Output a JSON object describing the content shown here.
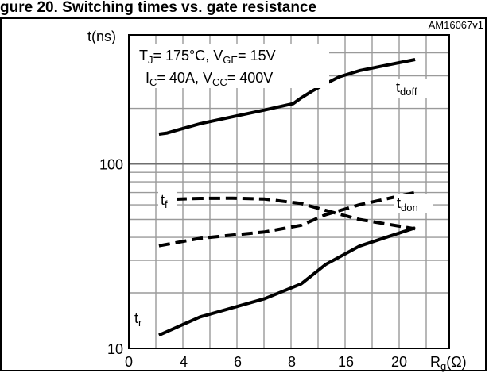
{
  "header": {
    "caption": "gure 20. Switching times vs. gate resistance"
  },
  "chart_data": {
    "type": "line",
    "code": "AM16067v1",
    "ylabel": "t(ns)",
    "xlabel": "Rg(Ω)",
    "xlabel_main": "R",
    "xlabel_sub": "g",
    "xlabel_tail": "(Ω)",
    "y_scale": "log",
    "ylim": [
      10,
      500
    ],
    "y_ticks": [
      "10",
      "100"
    ],
    "x_ticks": [
      "0",
      "4",
      "6",
      "8",
      "16",
      "20"
    ],
    "conditions": [
      {
        "parts": [
          [
            "T",
            ""
          ],
          [
            "J",
            "sub"
          ],
          [
            "= 175°C, V",
            ""
          ],
          [
            "GE",
            "sub"
          ],
          [
            "= 15V",
            ""
          ]
        ]
      },
      {
        "parts": [
          [
            "I",
            ""
          ],
          [
            "C",
            "sub"
          ],
          [
            "= 40A, V",
            ""
          ],
          [
            "CC",
            "sub"
          ],
          [
            "= 400V",
            ""
          ]
        ]
      }
    ],
    "series": [
      {
        "name": "tdoff",
        "main": "t",
        "sub": "doff",
        "dash": false,
        "x": [
          2.2,
          2.8,
          3.6,
          4.6,
          5.8,
          7.0,
          8.2,
          9.4,
          11.0,
          13.0,
          15.0,
          17.0,
          19.0,
          21.2
        ],
        "values": [
          145,
          147,
          153,
          165,
          180,
          196,
          212,
          228,
          248,
          272,
          296,
          320,
          342,
          368
        ]
      },
      {
        "name": "tdon",
        "main": "t",
        "sub": "don",
        "dash": true,
        "x": [
          2.2,
          4.6,
          7.0,
          9.4,
          13.0,
          17.0,
          21.2
        ],
        "values": [
          36,
          39.5,
          42.8,
          46.5,
          53,
          60,
          70
        ]
      },
      {
        "name": "tf",
        "main": "t",
        "sub": "f",
        "dash": true,
        "x": [
          2.2,
          4.6,
          5.8,
          7.0,
          9.4,
          13.0,
          17.0,
          21.2
        ],
        "values": [
          64,
          65,
          65.2,
          64.5,
          61,
          56,
          50,
          44.5
        ]
      },
      {
        "name": "tr",
        "main": "t",
        "sub": "r",
        "dash": false,
        "x": [
          2.2,
          4.6,
          7.0,
          9.4,
          13.0,
          17.0,
          21.2
        ],
        "values": [
          11.8,
          14.8,
          18.6,
          22.4,
          28.5,
          35.8,
          45
        ]
      }
    ],
    "grid": true,
    "legend": "inline labels near curves"
  }
}
